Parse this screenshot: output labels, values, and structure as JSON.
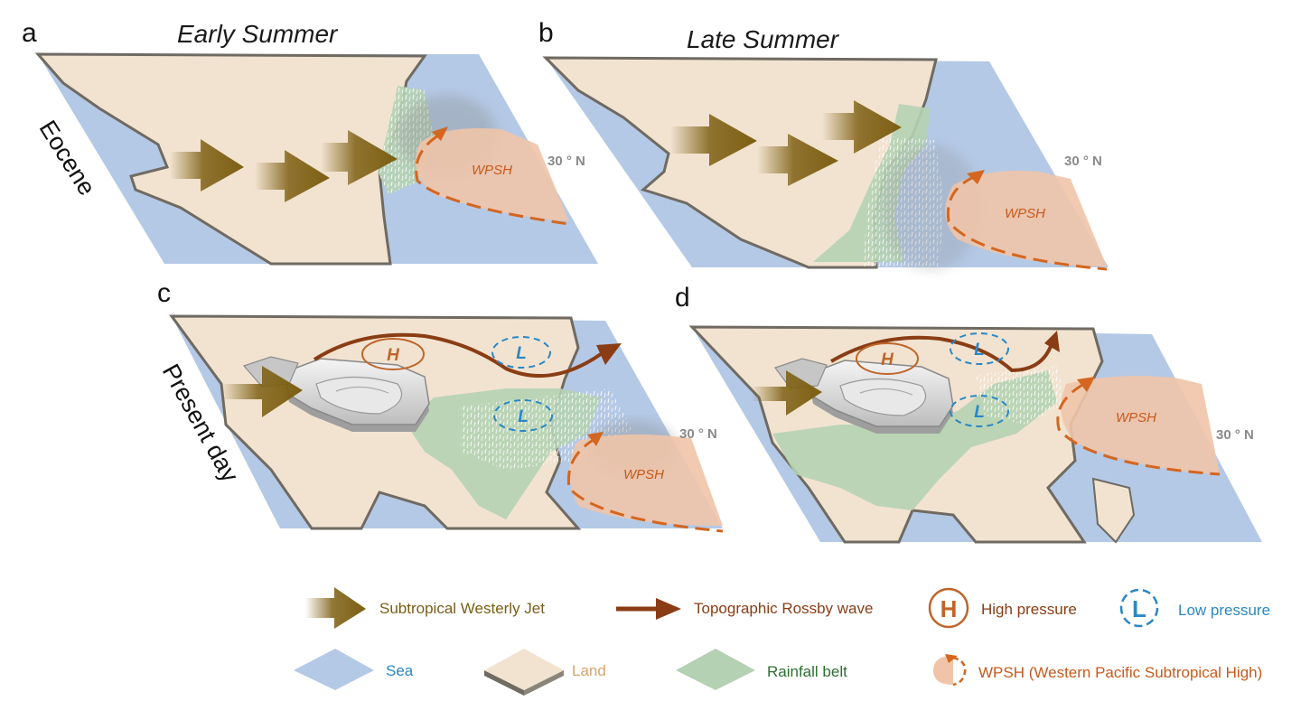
{
  "panels": {
    "a": {
      "letter": "a",
      "title": "Early Summer",
      "lat": "30 ° N",
      "wpsh": "WPSH"
    },
    "b": {
      "letter": "b",
      "title": "Late Summer",
      "lat": "30 ° N",
      "wpsh": "WPSH"
    },
    "c": {
      "letter": "c",
      "lat": "30 ° N",
      "wpsh": "WPSH",
      "high": "H",
      "low": "L"
    },
    "d": {
      "letter": "d",
      "lat": "30 ° N",
      "wpsh": "WPSH",
      "high": "H",
      "low": "L"
    }
  },
  "row_labels": {
    "top": "Eocene",
    "bottom": "Present day"
  },
  "legend": {
    "jet": "Subtropical Westerly Jet",
    "rossby": "Topographic Rossby wave",
    "high": "High pressure",
    "high_symbol": "H",
    "low": "Low pressure",
    "low_symbol": "L",
    "sea": "Sea",
    "land": "Land",
    "rain": "Rainfall belt",
    "wpsh": "WPSH (Western Pacific Subtropical High)"
  },
  "colors": {
    "sea": "#b4c9e6",
    "land": "#f2e3d0",
    "rain": "#b5d1b3",
    "wpsh": "#f0c4a8",
    "wpsh_line": "#d4661f",
    "jet": "#7d5f12",
    "rossby": "#8a3d14",
    "high": "#c0652a",
    "low": "#2a88c4"
  }
}
